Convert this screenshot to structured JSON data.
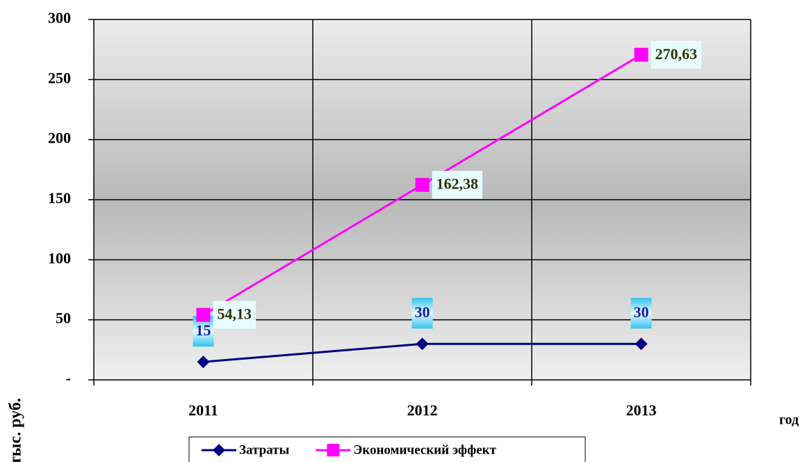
{
  "chart_data": {
    "type": "line",
    "categories": [
      "2011",
      "2012",
      "2013"
    ],
    "series": [
      {
        "name": "Затраты",
        "color": "#000080",
        "marker": "diamond",
        "values": [
          15,
          30,
          30
        ]
      },
      {
        "name": "Экономический эффект",
        "color": "#ff00ff",
        "marker": "square",
        "values": [
          54.13,
          162.38,
          270.63
        ],
        "value_labels": [
          "54,13",
          "162,38",
          "270,63"
        ]
      }
    ],
    "ylim": [
      0,
      300
    ],
    "yticks": [
      {
        "value": 0,
        "label": "-"
      },
      50,
      100,
      150,
      200,
      250,
      300
    ],
    "y_label": "тыс. руб.",
    "x_label": "год",
    "grid": true,
    "legend": "bottom"
  }
}
